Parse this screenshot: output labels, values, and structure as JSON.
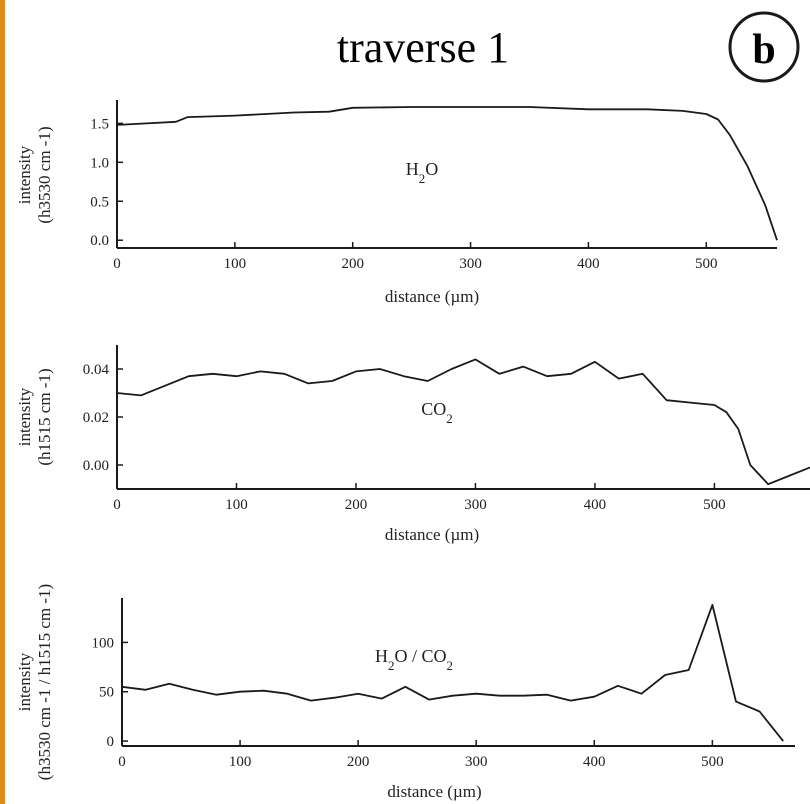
{
  "figure": {
    "title": "traverse 1",
    "panel_label": "b",
    "edge_color": "#e08a1e",
    "line_color": "#1a1a1a"
  },
  "chart_data": [
    {
      "type": "line",
      "annotation": "H2O",
      "xlabel": "distance (µm)",
      "ylabel": [
        "intensity",
        "(h3530 cm -1)"
      ],
      "xlim": [
        0,
        560
      ],
      "ylim": [
        -0.1,
        1.8
      ],
      "xticks": [
        0,
        100,
        200,
        300,
        400,
        500
      ],
      "yticks": [
        0.0,
        0.5,
        1.0,
        1.5
      ],
      "ytick_labels": [
        "0.0",
        "0.5",
        "1.0",
        "1.5"
      ],
      "x": [
        0,
        25,
        50,
        60,
        100,
        150,
        180,
        200,
        250,
        300,
        350,
        400,
        450,
        480,
        500,
        510,
        520,
        535,
        550,
        560
      ],
      "y": [
        1.48,
        1.5,
        1.52,
        1.58,
        1.6,
        1.64,
        1.65,
        1.7,
        1.71,
        1.71,
        1.71,
        1.68,
        1.68,
        1.66,
        1.62,
        1.55,
        1.35,
        0.95,
        0.45,
        0.0
      ]
    },
    {
      "type": "line",
      "annotation": "CO2",
      "xlabel": "distance (µm)",
      "ylabel": [
        "intensity",
        "(h1515 cm -1)"
      ],
      "xlim": [
        0,
        580
      ],
      "ylim": [
        -0.01,
        0.05
      ],
      "xticks": [
        0,
        100,
        200,
        300,
        400,
        500
      ],
      "yticks": [
        0.0,
        0.02,
        0.04
      ],
      "ytick_labels": [
        "0.00",
        "0.02",
        "0.04"
      ],
      "x": [
        0,
        20,
        40,
        60,
        80,
        100,
        120,
        140,
        160,
        180,
        200,
        220,
        240,
        260,
        280,
        300,
        320,
        340,
        360,
        380,
        400,
        420,
        440,
        460,
        480,
        500,
        510,
        520,
        530,
        545,
        560,
        580
      ],
      "y": [
        0.03,
        0.029,
        0.033,
        0.037,
        0.038,
        0.037,
        0.039,
        0.038,
        0.034,
        0.035,
        0.039,
        0.04,
        0.037,
        0.035,
        0.04,
        0.044,
        0.038,
        0.041,
        0.037,
        0.038,
        0.043,
        0.036,
        0.038,
        0.027,
        0.026,
        0.025,
        0.022,
        0.015,
        0.0,
        -0.008,
        -0.005,
        -0.001
      ]
    },
    {
      "type": "line",
      "annotation": "H2O / CO2",
      "xlabel": "distance (µm)",
      "ylabel": [
        "intensity",
        "(h3530 cm -1 / h1515 cm -1)"
      ],
      "xlim": [
        0,
        570
      ],
      "ylim": [
        -5,
        145
      ],
      "xticks": [
        0,
        100,
        200,
        300,
        400,
        500
      ],
      "yticks": [
        0,
        50,
        100
      ],
      "ytick_labels": [
        "0",
        "50",
        "100"
      ],
      "x": [
        0,
        20,
        40,
        60,
        80,
        100,
        120,
        140,
        160,
        180,
        200,
        220,
        240,
        260,
        280,
        300,
        320,
        340,
        360,
        380,
        400,
        420,
        440,
        460,
        480,
        500,
        520,
        540,
        560
      ],
      "y": [
        55,
        52,
        58,
        52,
        47,
        50,
        51,
        48,
        41,
        44,
        48,
        43,
        55,
        42,
        46,
        48,
        46,
        46,
        47,
        41,
        45,
        56,
        48,
        67,
        72,
        138,
        40,
        30,
        0
      ]
    }
  ]
}
